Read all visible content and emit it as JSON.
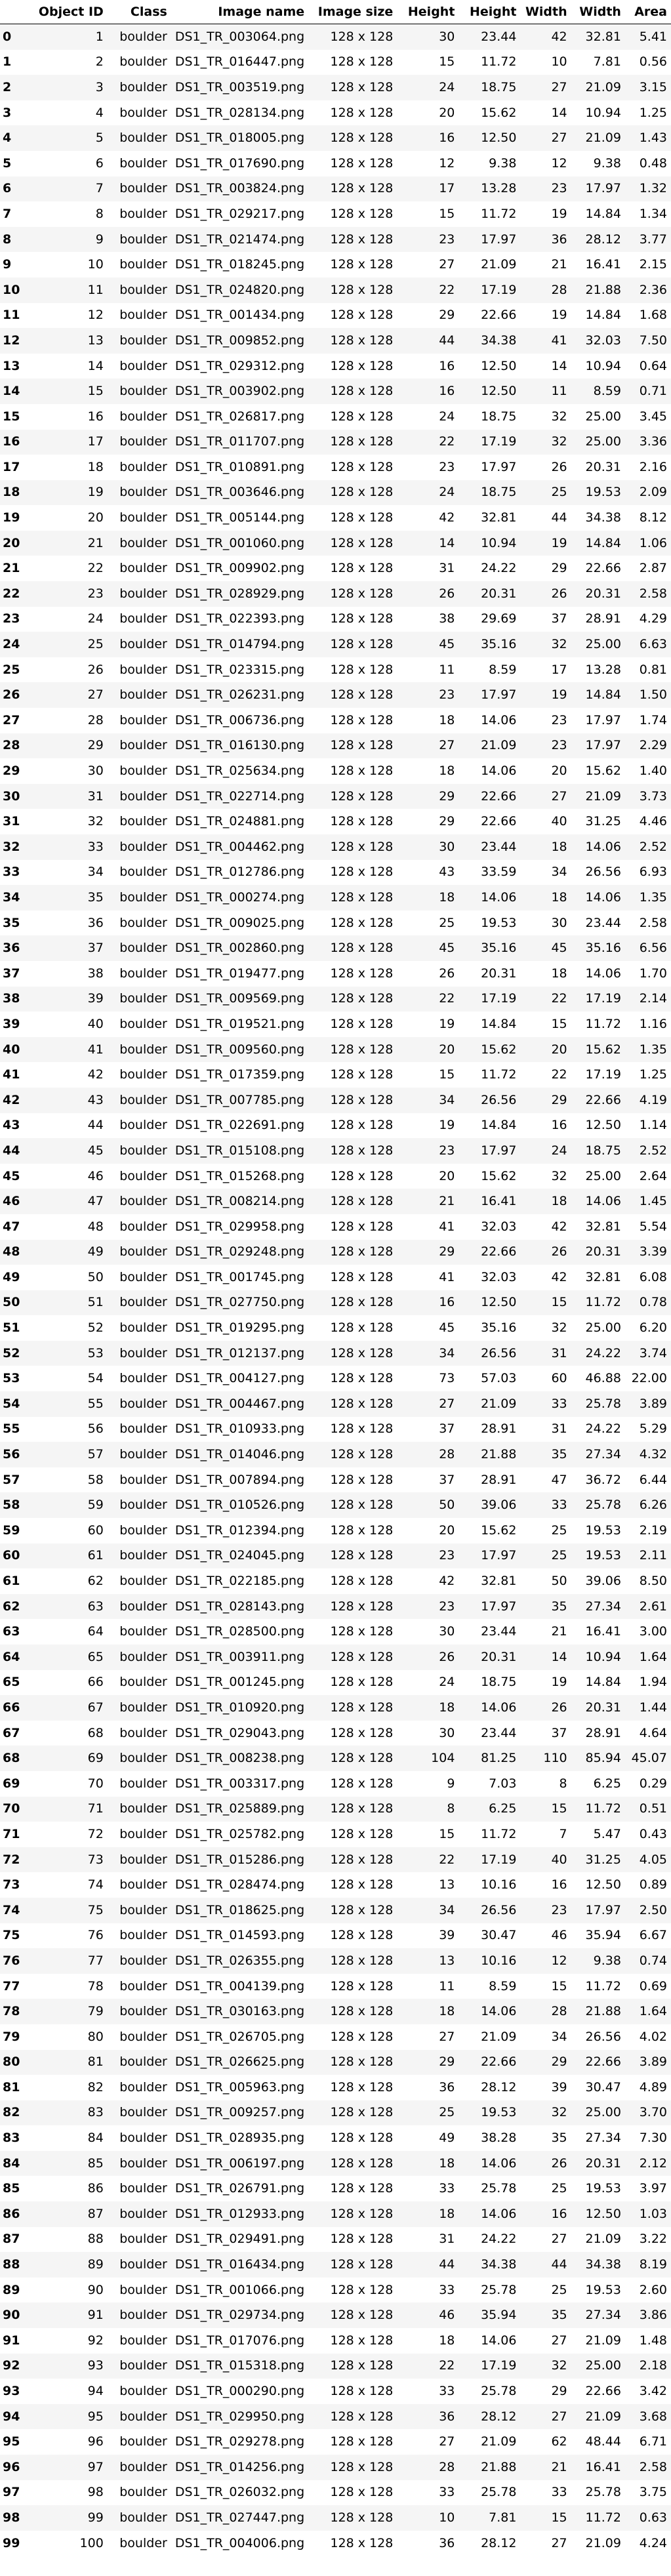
{
  "columns": [
    "",
    "Object ID",
    "Class",
    "Image name",
    "Image size",
    "Height",
    "Height",
    "Width",
    "Width",
    "Area"
  ],
  "rows": [
    [
      0,
      1,
      "boulder",
      "DS1_TR_003064.png",
      "128 x 128",
      30,
      "23.44",
      42,
      "32.81",
      "5.41"
    ],
    [
      1,
      2,
      "boulder",
      "DS1_TR_016447.png",
      "128 x 128",
      15,
      "11.72",
      10,
      "7.81",
      "0.56"
    ],
    [
      2,
      3,
      "boulder",
      "DS1_TR_003519.png",
      "128 x 128",
      24,
      "18.75",
      27,
      "21.09",
      "3.15"
    ],
    [
      3,
      4,
      "boulder",
      "DS1_TR_028134.png",
      "128 x 128",
      20,
      "15.62",
      14,
      "10.94",
      "1.25"
    ],
    [
      4,
      5,
      "boulder",
      "DS1_TR_018005.png",
      "128 x 128",
      16,
      "12.50",
      27,
      "21.09",
      "1.43"
    ],
    [
      5,
      6,
      "boulder",
      "DS1_TR_017690.png",
      "128 x 128",
      12,
      "9.38",
      12,
      "9.38",
      "0.48"
    ],
    [
      6,
      7,
      "boulder",
      "DS1_TR_003824.png",
      "128 x 128",
      17,
      "13.28",
      23,
      "17.97",
      "1.32"
    ],
    [
      7,
      8,
      "boulder",
      "DS1_TR_029217.png",
      "128 x 128",
      15,
      "11.72",
      19,
      "14.84",
      "1.34"
    ],
    [
      8,
      9,
      "boulder",
      "DS1_TR_021474.png",
      "128 x 128",
      23,
      "17.97",
      36,
      "28.12",
      "3.77"
    ],
    [
      9,
      10,
      "boulder",
      "DS1_TR_018245.png",
      "128 x 128",
      27,
      "21.09",
      21,
      "16.41",
      "2.15"
    ],
    [
      10,
      11,
      "boulder",
      "DS1_TR_024820.png",
      "128 x 128",
      22,
      "17.19",
      28,
      "21.88",
      "2.36"
    ],
    [
      11,
      12,
      "boulder",
      "DS1_TR_001434.png",
      "128 x 128",
      29,
      "22.66",
      19,
      "14.84",
      "1.68"
    ],
    [
      12,
      13,
      "boulder",
      "DS1_TR_009852.png",
      "128 x 128",
      44,
      "34.38",
      41,
      "32.03",
      "7.50"
    ],
    [
      13,
      14,
      "boulder",
      "DS1_TR_029312.png",
      "128 x 128",
      16,
      "12.50",
      14,
      "10.94",
      "0.64"
    ],
    [
      14,
      15,
      "boulder",
      "DS1_TR_003902.png",
      "128 x 128",
      16,
      "12.50",
      11,
      "8.59",
      "0.71"
    ],
    [
      15,
      16,
      "boulder",
      "DS1_TR_026817.png",
      "128 x 128",
      24,
      "18.75",
      32,
      "25.00",
      "3.45"
    ],
    [
      16,
      17,
      "boulder",
      "DS1_TR_011707.png",
      "128 x 128",
      22,
      "17.19",
      32,
      "25.00",
      "3.36"
    ],
    [
      17,
      18,
      "boulder",
      "DS1_TR_010891.png",
      "128 x 128",
      23,
      "17.97",
      26,
      "20.31",
      "2.16"
    ],
    [
      18,
      19,
      "boulder",
      "DS1_TR_003646.png",
      "128 x 128",
      24,
      "18.75",
      25,
      "19.53",
      "2.09"
    ],
    [
      19,
      20,
      "boulder",
      "DS1_TR_005144.png",
      "128 x 128",
      42,
      "32.81",
      44,
      "34.38",
      "8.12"
    ],
    [
      20,
      21,
      "boulder",
      "DS1_TR_001060.png",
      "128 x 128",
      14,
      "10.94",
      19,
      "14.84",
      "1.06"
    ],
    [
      21,
      22,
      "boulder",
      "DS1_TR_009902.png",
      "128 x 128",
      31,
      "24.22",
      29,
      "22.66",
      "2.87"
    ],
    [
      22,
      23,
      "boulder",
      "DS1_TR_028929.png",
      "128 x 128",
      26,
      "20.31",
      26,
      "20.31",
      "2.58"
    ],
    [
      23,
      24,
      "boulder",
      "DS1_TR_022393.png",
      "128 x 128",
      38,
      "29.69",
      37,
      "28.91",
      "4.29"
    ],
    [
      24,
      25,
      "boulder",
      "DS1_TR_014794.png",
      "128 x 128",
      45,
      "35.16",
      32,
      "25.00",
      "6.63"
    ],
    [
      25,
      26,
      "boulder",
      "DS1_TR_023315.png",
      "128 x 128",
      11,
      "8.59",
      17,
      "13.28",
      "0.81"
    ],
    [
      26,
      27,
      "boulder",
      "DS1_TR_026231.png",
      "128 x 128",
      23,
      "17.97",
      19,
      "14.84",
      "1.50"
    ],
    [
      27,
      28,
      "boulder",
      "DS1_TR_006736.png",
      "128 x 128",
      18,
      "14.06",
      23,
      "17.97",
      "1.74"
    ],
    [
      28,
      29,
      "boulder",
      "DS1_TR_016130.png",
      "128 x 128",
      27,
      "21.09",
      23,
      "17.97",
      "2.29"
    ],
    [
      29,
      30,
      "boulder",
      "DS1_TR_025634.png",
      "128 x 128",
      18,
      "14.06",
      20,
      "15.62",
      "1.40"
    ],
    [
      30,
      31,
      "boulder",
      "DS1_TR_022714.png",
      "128 x 128",
      29,
      "22.66",
      27,
      "21.09",
      "3.73"
    ],
    [
      31,
      32,
      "boulder",
      "DS1_TR_024881.png",
      "128 x 128",
      29,
      "22.66",
      40,
      "31.25",
      "4.46"
    ],
    [
      32,
      33,
      "boulder",
      "DS1_TR_004462.png",
      "128 x 128",
      30,
      "23.44",
      18,
      "14.06",
      "2.52"
    ],
    [
      33,
      34,
      "boulder",
      "DS1_TR_012786.png",
      "128 x 128",
      43,
      "33.59",
      34,
      "26.56",
      "6.93"
    ],
    [
      34,
      35,
      "boulder",
      "DS1_TR_000274.png",
      "128 x 128",
      18,
      "14.06",
      18,
      "14.06",
      "1.35"
    ],
    [
      35,
      36,
      "boulder",
      "DS1_TR_009025.png",
      "128 x 128",
      25,
      "19.53",
      30,
      "23.44",
      "2.58"
    ],
    [
      36,
      37,
      "boulder",
      "DS1_TR_002860.png",
      "128 x 128",
      45,
      "35.16",
      45,
      "35.16",
      "6.56"
    ],
    [
      37,
      38,
      "boulder",
      "DS1_TR_019477.png",
      "128 x 128",
      26,
      "20.31",
      18,
      "14.06",
      "1.70"
    ],
    [
      38,
      39,
      "boulder",
      "DS1_TR_009569.png",
      "128 x 128",
      22,
      "17.19",
      22,
      "17.19",
      "2.14"
    ],
    [
      39,
      40,
      "boulder",
      "DS1_TR_019521.png",
      "128 x 128",
      19,
      "14.84",
      15,
      "11.72",
      "1.16"
    ],
    [
      40,
      41,
      "boulder",
      "DS1_TR_009560.png",
      "128 x 128",
      20,
      "15.62",
      20,
      "15.62",
      "1.35"
    ],
    [
      41,
      42,
      "boulder",
      "DS1_TR_017359.png",
      "128 x 128",
      15,
      "11.72",
      22,
      "17.19",
      "1.25"
    ],
    [
      42,
      43,
      "boulder",
      "DS1_TR_007785.png",
      "128 x 128",
      34,
      "26.56",
      29,
      "22.66",
      "4.19"
    ],
    [
      43,
      44,
      "boulder",
      "DS1_TR_022691.png",
      "128 x 128",
      19,
      "14.84",
      16,
      "12.50",
      "1.14"
    ],
    [
      44,
      45,
      "boulder",
      "DS1_TR_015108.png",
      "128 x 128",
      23,
      "17.97",
      24,
      "18.75",
      "2.52"
    ],
    [
      45,
      46,
      "boulder",
      "DS1_TR_015268.png",
      "128 x 128",
      20,
      "15.62",
      32,
      "25.00",
      "2.64"
    ],
    [
      46,
      47,
      "boulder",
      "DS1_TR_008214.png",
      "128 x 128",
      21,
      "16.41",
      18,
      "14.06",
      "1.45"
    ],
    [
      47,
      48,
      "boulder",
      "DS1_TR_029958.png",
      "128 x 128",
      41,
      "32.03",
      42,
      "32.81",
      "5.54"
    ],
    [
      48,
      49,
      "boulder",
      "DS1_TR_029248.png",
      "128 x 128",
      29,
      "22.66",
      26,
      "20.31",
      "3.39"
    ],
    [
      49,
      50,
      "boulder",
      "DS1_TR_001745.png",
      "128 x 128",
      41,
      "32.03",
      42,
      "32.81",
      "6.08"
    ],
    [
      50,
      51,
      "boulder",
      "DS1_TR_027750.png",
      "128 x 128",
      16,
      "12.50",
      15,
      "11.72",
      "0.78"
    ],
    [
      51,
      52,
      "boulder",
      "DS1_TR_019295.png",
      "128 x 128",
      45,
      "35.16",
      32,
      "25.00",
      "6.20"
    ],
    [
      52,
      53,
      "boulder",
      "DS1_TR_012137.png",
      "128 x 128",
      34,
      "26.56",
      31,
      "24.22",
      "3.74"
    ],
    [
      53,
      54,
      "boulder",
      "DS1_TR_004127.png",
      "128 x 128",
      73,
      "57.03",
      60,
      "46.88",
      "22.00"
    ],
    [
      54,
      55,
      "boulder",
      "DS1_TR_004467.png",
      "128 x 128",
      27,
      "21.09",
      33,
      "25.78",
      "3.89"
    ],
    [
      55,
      56,
      "boulder",
      "DS1_TR_010933.png",
      "128 x 128",
      37,
      "28.91",
      31,
      "24.22",
      "5.29"
    ],
    [
      56,
      57,
      "boulder",
      "DS1_TR_014046.png",
      "128 x 128",
      28,
      "21.88",
      35,
      "27.34",
      "4.32"
    ],
    [
      57,
      58,
      "boulder",
      "DS1_TR_007894.png",
      "128 x 128",
      37,
      "28.91",
      47,
      "36.72",
      "6.44"
    ],
    [
      58,
      59,
      "boulder",
      "DS1_TR_010526.png",
      "128 x 128",
      50,
      "39.06",
      33,
      "25.78",
      "6.26"
    ],
    [
      59,
      60,
      "boulder",
      "DS1_TR_012394.png",
      "128 x 128",
      20,
      "15.62",
      25,
      "19.53",
      "2.19"
    ],
    [
      60,
      61,
      "boulder",
      "DS1_TR_024045.png",
      "128 x 128",
      23,
      "17.97",
      25,
      "19.53",
      "2.11"
    ],
    [
      61,
      62,
      "boulder",
      "DS1_TR_022185.png",
      "128 x 128",
      42,
      "32.81",
      50,
      "39.06",
      "8.50"
    ],
    [
      62,
      63,
      "boulder",
      "DS1_TR_028143.png",
      "128 x 128",
      23,
      "17.97",
      35,
      "27.34",
      "2.61"
    ],
    [
      63,
      64,
      "boulder",
      "DS1_TR_028500.png",
      "128 x 128",
      30,
      "23.44",
      21,
      "16.41",
      "3.00"
    ],
    [
      64,
      65,
      "boulder",
      "DS1_TR_003911.png",
      "128 x 128",
      26,
      "20.31",
      14,
      "10.94",
      "1.64"
    ],
    [
      65,
      66,
      "boulder",
      "DS1_TR_001245.png",
      "128 x 128",
      24,
      "18.75",
      19,
      "14.84",
      "1.94"
    ],
    [
      66,
      67,
      "boulder",
      "DS1_TR_010920.png",
      "128 x 128",
      18,
      "14.06",
      26,
      "20.31",
      "1.44"
    ],
    [
      67,
      68,
      "boulder",
      "DS1_TR_029043.png",
      "128 x 128",
      30,
      "23.44",
      37,
      "28.91",
      "4.64"
    ],
    [
      68,
      69,
      "boulder",
      "DS1_TR_008238.png",
      "128 x 128",
      104,
      "81.25",
      110,
      "85.94",
      "45.07"
    ],
    [
      69,
      70,
      "boulder",
      "DS1_TR_003317.png",
      "128 x 128",
      9,
      "7.03",
      8,
      "6.25",
      "0.29"
    ],
    [
      70,
      71,
      "boulder",
      "DS1_TR_025889.png",
      "128 x 128",
      8,
      "6.25",
      15,
      "11.72",
      "0.51"
    ],
    [
      71,
      72,
      "boulder",
      "DS1_TR_025782.png",
      "128 x 128",
      15,
      "11.72",
      7,
      "5.47",
      "0.43"
    ],
    [
      72,
      73,
      "boulder",
      "DS1_TR_015286.png",
      "128 x 128",
      22,
      "17.19",
      40,
      "31.25",
      "4.05"
    ],
    [
      73,
      74,
      "boulder",
      "DS1_TR_028474.png",
      "128 x 128",
      13,
      "10.16",
      16,
      "12.50",
      "0.89"
    ],
    [
      74,
      75,
      "boulder",
      "DS1_TR_018625.png",
      "128 x 128",
      34,
      "26.56",
      23,
      "17.97",
      "2.50"
    ],
    [
      75,
      76,
      "boulder",
      "DS1_TR_014593.png",
      "128 x 128",
      39,
      "30.47",
      46,
      "35.94",
      "6.67"
    ],
    [
      76,
      77,
      "boulder",
      "DS1_TR_026355.png",
      "128 x 128",
      13,
      "10.16",
      12,
      "9.38",
      "0.74"
    ],
    [
      77,
      78,
      "boulder",
      "DS1_TR_004139.png",
      "128 x 128",
      11,
      "8.59",
      15,
      "11.72",
      "0.69"
    ],
    [
      78,
      79,
      "boulder",
      "DS1_TR_030163.png",
      "128 x 128",
      18,
      "14.06",
      28,
      "21.88",
      "1.64"
    ],
    [
      79,
      80,
      "boulder",
      "DS1_TR_026705.png",
      "128 x 128",
      27,
      "21.09",
      34,
      "26.56",
      "4.02"
    ],
    [
      80,
      81,
      "boulder",
      "DS1_TR_026625.png",
      "128 x 128",
      29,
      "22.66",
      29,
      "22.66",
      "3.89"
    ],
    [
      81,
      82,
      "boulder",
      "DS1_TR_005963.png",
      "128 x 128",
      36,
      "28.12",
      39,
      "30.47",
      "4.89"
    ],
    [
      82,
      83,
      "boulder",
      "DS1_TR_009257.png",
      "128 x 128",
      25,
      "19.53",
      32,
      "25.00",
      "3.70"
    ],
    [
      83,
      84,
      "boulder",
      "DS1_TR_028935.png",
      "128 x 128",
      49,
      "38.28",
      35,
      "27.34",
      "7.30"
    ],
    [
      84,
      85,
      "boulder",
      "DS1_TR_006197.png",
      "128 x 128",
      18,
      "14.06",
      26,
      "20.31",
      "2.12"
    ],
    [
      85,
      86,
      "boulder",
      "DS1_TR_026791.png",
      "128 x 128",
      33,
      "25.78",
      25,
      "19.53",
      "3.97"
    ],
    [
      86,
      87,
      "boulder",
      "DS1_TR_012933.png",
      "128 x 128",
      18,
      "14.06",
      16,
      "12.50",
      "1.03"
    ],
    [
      87,
      88,
      "boulder",
      "DS1_TR_029491.png",
      "128 x 128",
      31,
      "24.22",
      27,
      "21.09",
      "3.22"
    ],
    [
      88,
      89,
      "boulder",
      "DS1_TR_016434.png",
      "128 x 128",
      44,
      "34.38",
      44,
      "34.38",
      "8.19"
    ],
    [
      89,
      90,
      "boulder",
      "DS1_TR_001066.png",
      "128 x 128",
      33,
      "25.78",
      25,
      "19.53",
      "2.60"
    ],
    [
      90,
      91,
      "boulder",
      "DS1_TR_029734.png",
      "128 x 128",
      46,
      "35.94",
      35,
      "27.34",
      "3.86"
    ],
    [
      91,
      92,
      "boulder",
      "DS1_TR_017076.png",
      "128 x 128",
      18,
      "14.06",
      27,
      "21.09",
      "1.48"
    ],
    [
      92,
      93,
      "boulder",
      "DS1_TR_015318.png",
      "128 x 128",
      22,
      "17.19",
      32,
      "25.00",
      "2.18"
    ],
    [
      93,
      94,
      "boulder",
      "DS1_TR_000290.png",
      "128 x 128",
      33,
      "25.78",
      29,
      "22.66",
      "3.42"
    ],
    [
      94,
      95,
      "boulder",
      "DS1_TR_029950.png",
      "128 x 128",
      36,
      "28.12",
      27,
      "21.09",
      "3.68"
    ],
    [
      95,
      96,
      "boulder",
      "DS1_TR_029278.png",
      "128 x 128",
      27,
      "21.09",
      62,
      "48.44",
      "6.71"
    ],
    [
      96,
      97,
      "boulder",
      "DS1_TR_014256.png",
      "128 x 128",
      28,
      "21.88",
      21,
      "16.41",
      "2.58"
    ],
    [
      97,
      98,
      "boulder",
      "DS1_TR_026032.png",
      "128 x 128",
      33,
      "25.78",
      33,
      "25.78",
      "3.75"
    ],
    [
      98,
      99,
      "boulder",
      "DS1_TR_027447.png",
      "128 x 128",
      10,
      "7.81",
      15,
      "11.72",
      "0.63"
    ],
    [
      99,
      100,
      "boulder",
      "DS1_TR_004006.png",
      "128 x 128",
      36,
      "28.12",
      27,
      "21.09",
      "4.24"
    ]
  ]
}
